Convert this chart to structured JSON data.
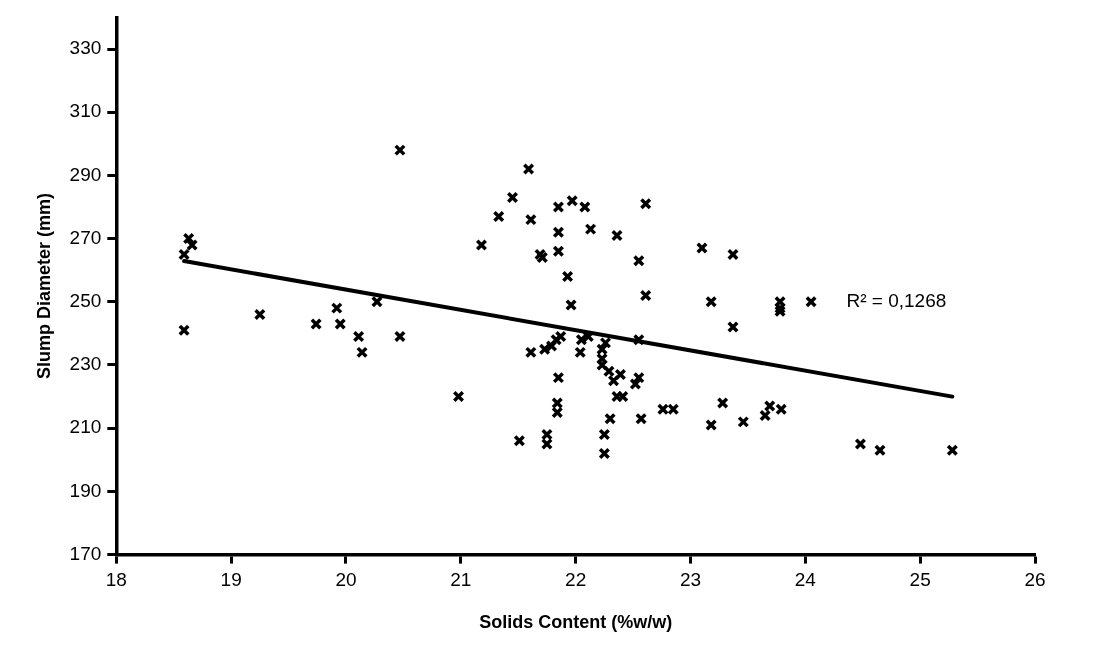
{
  "chart_data": {
    "type": "scatter",
    "xlabel": "Solids Content (%w/w)",
    "ylabel": "Slump Diameter (mm)",
    "xlim": [
      18,
      26
    ],
    "xticks": [
      18,
      19,
      20,
      21,
      22,
      23,
      24,
      25,
      26
    ],
    "ylim": [
      170,
      340
    ],
    "yticks": [
      170,
      190,
      210,
      230,
      250,
      270,
      290,
      310,
      330
    ],
    "grid": false,
    "legend": false,
    "marker": "cross",
    "annotations": [
      "R² = 0,1268"
    ],
    "series": [
      {
        "color": "#000000",
        "x": [
          18.59,
          18.63,
          18.66,
          18.59,
          19.25,
          19.74,
          19.92,
          19.95,
          20.11,
          20.14,
          20.27,
          20.47,
          20.47,
          20.98,
          21.18,
          21.33,
          21.45,
          21.59,
          21.61,
          21.85,
          21.97,
          22.08,
          22.61,
          21.85,
          22.13,
          22.36,
          21.69,
          21.71,
          21.85,
          22.55,
          21.93,
          22.61,
          21.96,
          23.1,
          23.37,
          23.18,
          23.37,
          23.78,
          23.78,
          23.78,
          24.05,
          21.51,
          21.75,
          21.75,
          22.25,
          22.25,
          22.3,
          22.57,
          21.85,
          21.84,
          21.84,
          22.76,
          22.85,
          23.28,
          23.18,
          23.46,
          23.65,
          23.69,
          23.79,
          24.48,
          24.65,
          25.28,
          21.61,
          21.73,
          21.79,
          21.83,
          21.87,
          22.05,
          22.04,
          22.11,
          22.55,
          22.23,
          22.26,
          22.23,
          22.23,
          22.29,
          22.33,
          22.39,
          22.36,
          22.41,
          22.52,
          22.55
        ],
        "values": [
          265,
          270,
          268,
          241,
          246,
          243,
          248,
          243,
          239,
          234,
          250,
          298,
          239,
          220,
          268,
          277,
          283,
          292,
          276,
          280,
          282,
          280,
          281,
          272,
          273,
          271,
          265,
          264,
          266,
          263,
          258,
          252,
          249,
          267,
          265,
          250,
          242,
          250,
          248,
          247,
          250,
          206,
          208,
          205,
          208,
          202,
          213,
          213,
          226,
          218,
          215,
          216,
          216,
          218,
          211,
          212,
          214,
          217,
          216,
          205,
          203,
          203,
          234,
          235,
          236,
          238,
          239,
          238,
          234,
          239,
          238,
          235,
          237,
          232,
          230,
          228,
          225,
          227,
          220,
          220,
          224,
          226
        ]
      },
      {
        "type": "line",
        "color": "#000000",
        "marker": "none",
        "line_style": "solid",
        "x": [
          18.59,
          25.28
        ],
        "values": [
          262.9,
          220
        ]
      }
    ]
  }
}
